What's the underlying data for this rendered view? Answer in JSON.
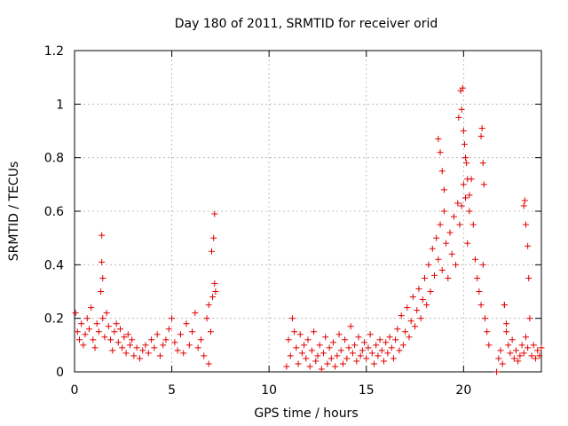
{
  "chart_data": {
    "type": "scatter",
    "title": "Day 180 of 2011, SRMTID for receiver orid",
    "xlabel": "GPS time / hours",
    "ylabel": "SRMTID / TECUs",
    "xlim": [
      0,
      24
    ],
    "ylim": [
      0,
      1.2
    ],
    "xticks": [
      0,
      5,
      10,
      15,
      20
    ],
    "xtick_labels": [
      "0",
      "5",
      "10",
      "15",
      "20"
    ],
    "yticks": [
      0,
      0.2,
      0.4,
      0.6,
      0.8,
      1.0,
      1.2
    ],
    "ytick_labels": [
      "0",
      "0.2",
      "0.4",
      "0.6",
      "0.8",
      "1",
      "1.2"
    ],
    "grid": true,
    "marker": "+",
    "color": "#e00000",
    "series": [
      {
        "name": "SRMTID",
        "x": [
          0.05,
          0.15,
          0.25,
          0.35,
          0.45,
          0.55,
          0.65,
          0.75,
          0.85,
          0.95,
          1.05,
          1.15,
          1.25,
          1.35,
          1.45,
          1.55,
          1.65,
          1.75,
          1.85,
          1.95,
          2.05,
          2.15,
          2.25,
          2.35,
          2.45,
          2.55,
          2.65,
          2.75,
          2.85,
          2.95,
          3.05,
          3.2,
          3.35,
          3.5,
          3.65,
          3.8,
          3.95,
          4.1,
          4.25,
          4.4,
          4.55,
          4.7,
          4.85,
          5.0,
          5.15,
          5.3,
          5.45,
          5.6,
          5.75,
          5.9,
          6.05,
          6.2,
          6.35,
          6.5,
          6.65,
          6.8,
          6.9,
          7.0,
          7.1,
          7.2,
          7.25,
          1.4,
          1.4,
          1.45,
          6.9,
          7.05,
          7.15,
          7.2,
          10.9,
          11.0,
          11.1,
          11.2,
          11.3,
          11.4,
          11.5,
          11.6,
          11.7,
          11.8,
          11.9,
          12.0,
          12.1,
          12.2,
          12.3,
          12.4,
          12.5,
          12.6,
          12.7,
          12.8,
          12.9,
          13.0,
          13.1,
          13.2,
          13.3,
          13.4,
          13.5,
          13.6,
          13.7,
          13.8,
          13.9,
          14.0,
          14.1,
          14.2,
          14.3,
          14.4,
          14.5,
          14.6,
          14.7,
          14.8,
          14.9,
          15.0,
          15.1,
          15.2,
          15.3,
          15.4,
          15.5,
          15.6,
          15.7,
          15.8,
          15.9,
          16.0,
          16.1,
          16.2,
          16.3,
          16.4,
          16.5,
          16.6,
          16.7,
          16.8,
          16.9,
          17.0,
          17.1,
          17.2,
          17.3,
          17.4,
          17.5,
          17.6,
          17.7,
          17.8,
          17.9,
          18.0,
          18.1,
          18.2,
          18.3,
          18.4,
          18.5,
          18.6,
          18.7,
          18.8,
          18.9,
          19.0,
          19.1,
          19.2,
          19.3,
          19.4,
          19.5,
          19.6,
          19.7,
          19.8,
          19.9,
          20.0,
          20.1,
          20.2,
          20.3,
          20.4,
          20.5,
          20.6,
          20.7,
          20.8,
          20.9,
          21.0,
          21.1,
          21.2,
          21.3,
          18.7,
          18.8,
          18.9,
          19.0,
          19.75,
          19.85,
          19.9,
          19.95,
          20.0,
          20.05,
          20.1,
          20.15,
          20.2,
          20.3,
          20.9,
          20.95,
          21.0,
          21.05,
          21.7,
          21.8,
          21.9,
          22.0,
          22.1,
          22.2,
          22.3,
          22.4,
          22.5,
          22.6,
          22.7,
          22.8,
          22.9,
          23.0,
          23.1,
          23.2,
          23.3,
          23.4,
          23.5,
          23.6,
          23.7,
          23.8,
          23.9,
          24.0,
          22.1,
          22.2,
          23.1,
          23.15,
          23.2,
          23.3,
          23.35
        ],
        "y": [
          0.22,
          0.15,
          0.12,
          0.18,
          0.1,
          0.14,
          0.2,
          0.16,
          0.24,
          0.12,
          0.09,
          0.18,
          0.15,
          0.3,
          0.2,
          0.13,
          0.22,
          0.17,
          0.12,
          0.08,
          0.15,
          0.18,
          0.11,
          0.16,
          0.09,
          0.13,
          0.07,
          0.14,
          0.1,
          0.12,
          0.06,
          0.09,
          0.05,
          0.08,
          0.1,
          0.07,
          0.12,
          0.09,
          0.14,
          0.06,
          0.1,
          0.12,
          0.16,
          0.2,
          0.11,
          0.08,
          0.14,
          0.07,
          0.18,
          0.1,
          0.15,
          0.22,
          0.09,
          0.12,
          0.06,
          0.2,
          0.03,
          0.15,
          0.28,
          0.33,
          0.3,
          0.51,
          0.41,
          0.35,
          0.25,
          0.45,
          0.5,
          0.59,
          0.02,
          0.12,
          0.06,
          0.2,
          0.15,
          0.09,
          0.03,
          0.14,
          0.07,
          0.1,
          0.05,
          0.12,
          0.02,
          0.08,
          0.15,
          0.04,
          0.06,
          0.1,
          0.01,
          0.07,
          0.13,
          0.03,
          0.09,
          0.05,
          0.11,
          0.02,
          0.06,
          0.14,
          0.08,
          0.03,
          0.12,
          0.05,
          0.09,
          0.17,
          0.07,
          0.1,
          0.04,
          0.13,
          0.06,
          0.08,
          0.11,
          0.05,
          0.09,
          0.14,
          0.07,
          0.03,
          0.1,
          0.06,
          0.12,
          0.08,
          0.04,
          0.11,
          0.07,
          0.13,
          0.09,
          0.05,
          0.12,
          0.16,
          0.08,
          0.21,
          0.1,
          0.15,
          0.24,
          0.13,
          0.19,
          0.28,
          0.17,
          0.23,
          0.31,
          0.2,
          0.27,
          0.35,
          0.25,
          0.4,
          0.3,
          0.46,
          0.36,
          0.5,
          0.42,
          0.55,
          0.38,
          0.6,
          0.48,
          0.35,
          0.52,
          0.44,
          0.58,
          0.4,
          0.63,
          0.55,
          0.62,
          0.7,
          0.65,
          0.48,
          0.6,
          0.72,
          0.55,
          0.42,
          0.35,
          0.3,
          0.25,
          0.4,
          0.2,
          0.15,
          0.1,
          0.87,
          0.82,
          0.75,
          0.68,
          0.95,
          1.05,
          0.98,
          1.06,
          0.9,
          0.85,
          0.8,
          0.78,
          0.72,
          0.66,
          0.88,
          0.91,
          0.78,
          0.7,
          0.0,
          0.05,
          0.08,
          0.03,
          0.25,
          0.15,
          0.1,
          0.07,
          0.12,
          0.05,
          0.08,
          0.04,
          0.06,
          0.1,
          0.07,
          0.13,
          0.09,
          0.2,
          0.06,
          0.1,
          0.05,
          0.08,
          0.06,
          0.09,
          0.25,
          0.18,
          0.62,
          0.64,
          0.55,
          0.47,
          0.35
        ]
      }
    ]
  }
}
